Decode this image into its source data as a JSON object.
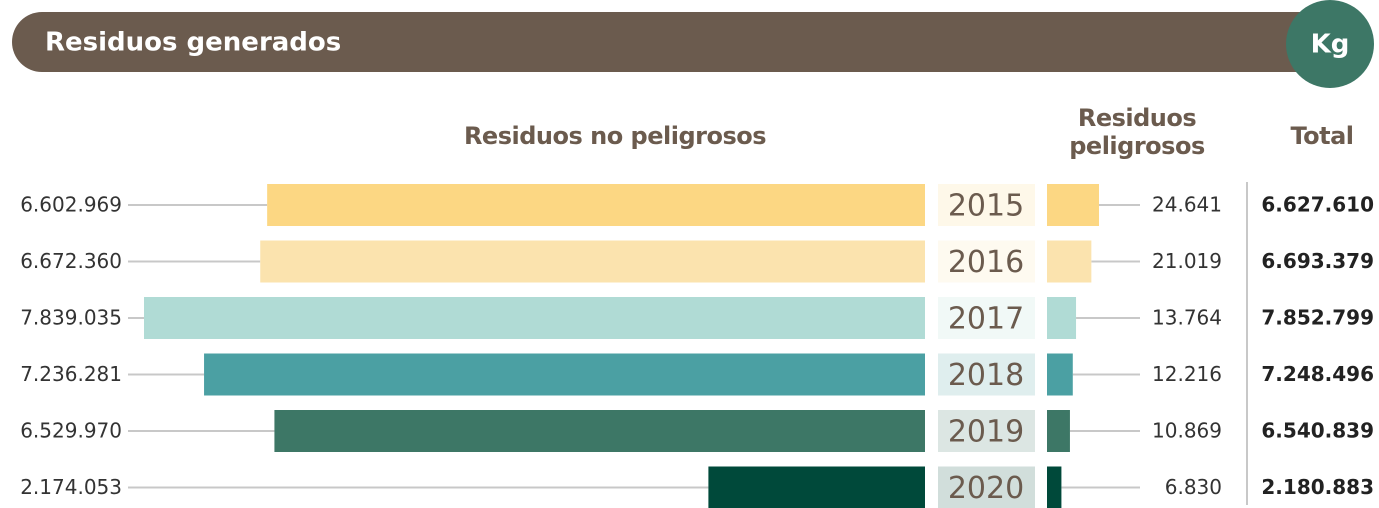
{
  "header": {
    "title": "Residuos generados",
    "unit": "Kg"
  },
  "chart_data": {
    "type": "bar",
    "categories": [
      "2015",
      "2016",
      "2017",
      "2018",
      "2019",
      "2020"
    ],
    "colors": [
      "#fcd783",
      "#fbe3ae",
      "#b0dbd5",
      "#4ba0a3",
      "#3d7766",
      "#00493a"
    ],
    "series": [
      {
        "name": "Residuos no peligrosos",
        "values": [
          6602969,
          6672360,
          7839035,
          7236281,
          6529970,
          2174053
        ],
        "value_labels": [
          "6.602.969",
          "6.672.360",
          "7.839.035",
          "7.236.281",
          "6.529.970",
          "2.174.053"
        ]
      },
      {
        "name": "Residuos peligrosos",
        "values": [
          24641,
          21019,
          13764,
          12216,
          10869,
          6830
        ],
        "value_labels": [
          "24.641",
          "21.019",
          "13.764",
          "12.216",
          "10.869",
          "6.830"
        ]
      }
    ],
    "totals": {
      "name": "Total",
      "values": [
        6627610,
        6693379,
        7852799,
        7248496,
        6540839,
        2180883
      ],
      "value_labels": [
        "6.627.610",
        "6.693.379",
        "7.852.799",
        "7.248.496",
        "6.540.839",
        "2.180.883"
      ]
    }
  }
}
